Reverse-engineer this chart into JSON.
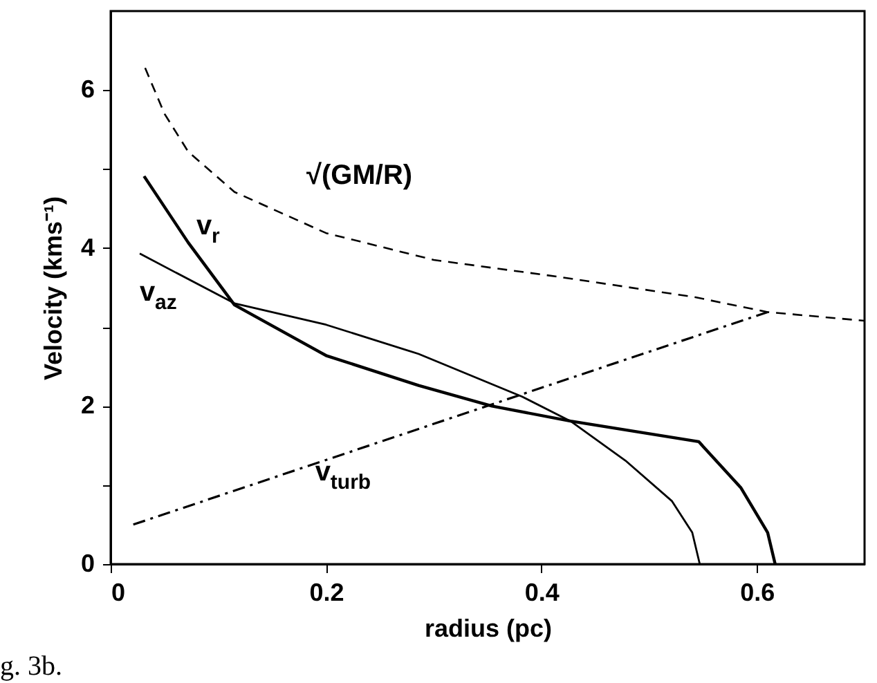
{
  "chart_data": {
    "type": "line",
    "xlabel": "radius (pc)",
    "ylabel": "Velocity (kms⁻¹)",
    "xlim": [
      0,
      0.7
    ],
    "xticks": [
      0,
      0.2,
      0.4,
      0.6
    ],
    "ylim": [
      0,
      7
    ],
    "yticks": [
      0,
      {
        "value": 1,
        "label": null
      },
      2,
      {
        "value": 3,
        "label": null
      },
      4,
      {
        "value": 5,
        "label": null
      },
      6
    ],
    "grid": false,
    "marker": "none",
    "series": [
      {
        "name": "√(GM/R)",
        "color": "#000000",
        "line_style": "dashed",
        "x": [
          0.032,
          0.05,
          0.072,
          0.115,
          0.2,
          0.3,
          0.414,
          0.542,
          0.61,
          0.7
        ],
        "values": [
          6.28,
          5.7,
          5.22,
          4.71,
          4.19,
          3.85,
          3.64,
          3.38,
          3.19,
          3.08
        ]
      },
      {
        "name": "v$_{r}$",
        "color": "#000000",
        "line_style": "solid",
        "x": [
          0.031,
          0.072,
          0.115,
          0.2,
          0.286,
          0.354,
          0.427,
          0.546,
          0.585,
          0.61,
          0.617
        ],
        "values": [
          4.91,
          4.07,
          3.28,
          2.64,
          2.26,
          2.0,
          1.81,
          1.55,
          0.97,
          0.4,
          0
        ]
      },
      {
        "name": "v$_{az}$",
        "color": "#000000",
        "line_style": "solid",
        "x": [
          0.027,
          0.115,
          0.2,
          0.286,
          0.382,
          0.427,
          0.478,
          0.521,
          0.54,
          0.547
        ],
        "values": [
          3.93,
          3.3,
          3.03,
          2.66,
          2.12,
          1.81,
          1.31,
          0.8,
          0.4,
          0
        ]
      },
      {
        "name": "v$_{turb}$",
        "color": "#000000",
        "line_style": "dashdot",
        "x": [
          0.021,
          0.312,
          0.61
        ],
        "values": [
          0.5,
          1.83,
          3.19
        ]
      }
    ],
    "annotations": [
      "g. 3b."
    ]
  }
}
